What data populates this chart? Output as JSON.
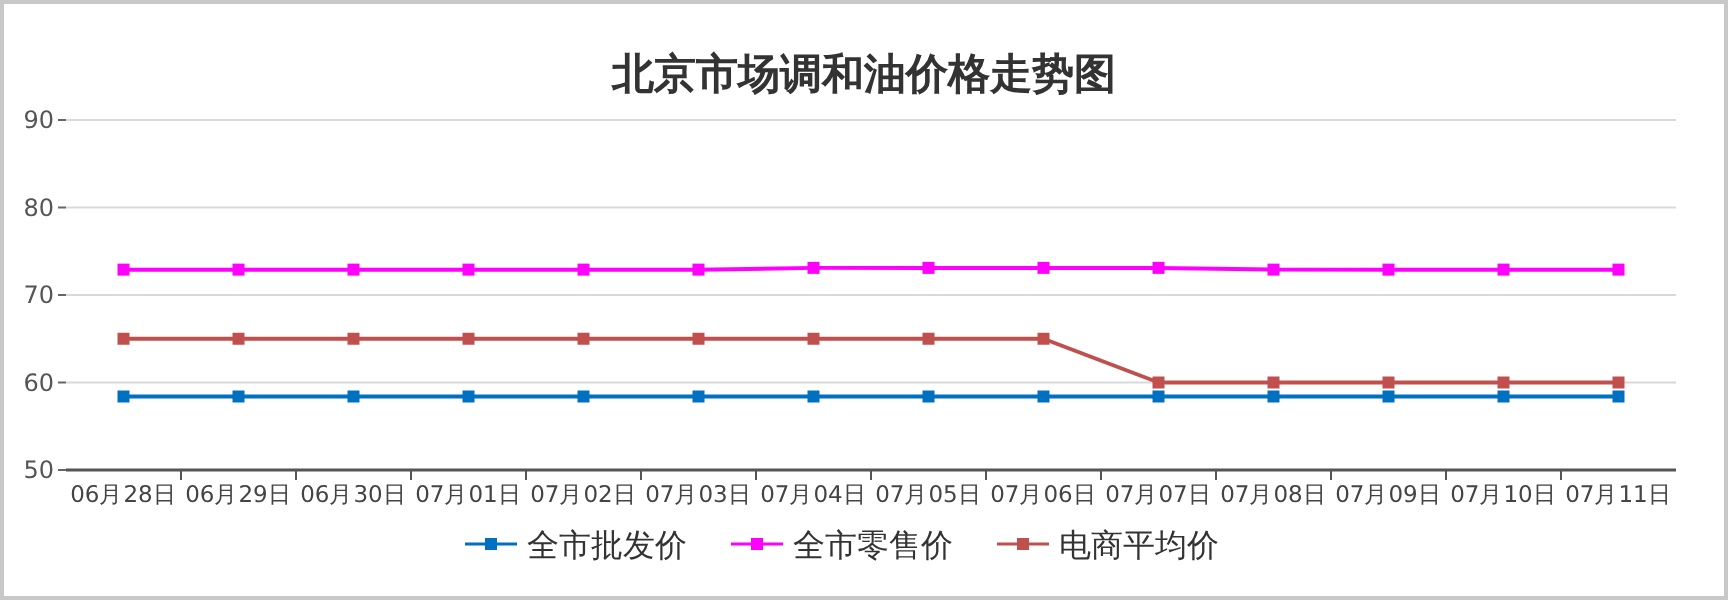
{
  "chart_data": {
    "type": "line",
    "title": "北京市场调和油价格走势图",
    "categories": [
      "06月28日",
      "06月29日",
      "06月30日",
      "07月01日",
      "07月02日",
      "07月03日",
      "07月04日",
      "07月05日",
      "07月06日",
      "07月07日",
      "07月08日",
      "07月09日",
      "07月10日",
      "07月11日"
    ],
    "series": [
      {
        "name": "全市批发价",
        "color": "#0070c0",
        "values": [
          58.4,
          58.4,
          58.4,
          58.4,
          58.4,
          58.4,
          58.4,
          58.4,
          58.4,
          58.4,
          58.4,
          58.4,
          58.4,
          58.4
        ]
      },
      {
        "name": "全市零售价",
        "color": "#ff00ff",
        "values": [
          72.9,
          72.9,
          72.9,
          72.9,
          72.9,
          72.9,
          73.1,
          73.1,
          73.1,
          73.1,
          72.9,
          72.9,
          72.9,
          72.9
        ]
      },
      {
        "name": "电商平均价",
        "color": "#c0504d",
        "values": [
          65,
          65,
          65,
          65,
          65,
          65,
          65,
          65,
          65,
          60,
          60,
          60,
          60,
          60
        ]
      }
    ],
    "ylim": [
      50,
      90
    ],
    "yticks": [
      50,
      60,
      70,
      80,
      90
    ],
    "grid": "y",
    "legend": "bottom",
    "marker": "square",
    "line_style": "solid"
  }
}
